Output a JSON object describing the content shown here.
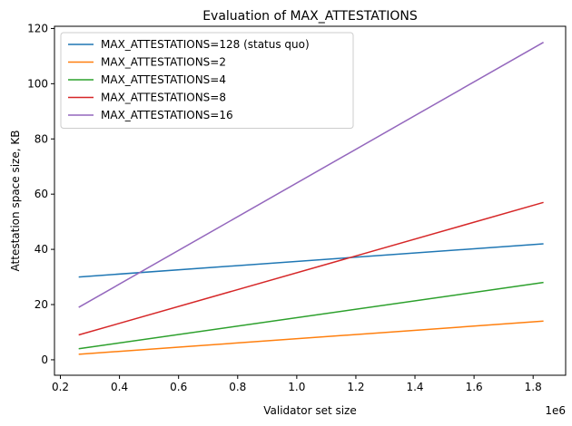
{
  "chart_data": {
    "type": "line",
    "title": "Evaluation of MAX_ATTESTATIONS",
    "xlabel": "Validator set size",
    "ylabel": "Attestation space size, KB",
    "x_offset_label": "1e6",
    "x_ticks": [
      0.2,
      0.4,
      0.6,
      0.8,
      1.0,
      1.2,
      1.4,
      1.6,
      1.8
    ],
    "x_tick_labels": [
      "0.2",
      "0.4",
      "0.6",
      "0.8",
      "1.0",
      "1.2",
      "1.4",
      "1.6",
      "1.8"
    ],
    "y_ticks": [
      0,
      20,
      40,
      60,
      80,
      100,
      120
    ],
    "y_tick_labels": [
      "0",
      "20",
      "40",
      "60",
      "80",
      "100",
      "120"
    ],
    "xlim": [
      0.18,
      1.91
    ],
    "ylim": [
      -5.6,
      120.8
    ],
    "grid": false,
    "legend_position": "top-left",
    "series": [
      {
        "name": "MAX_ATTESTATIONS=128 (status quo)",
        "color": "#1f77b4",
        "x": [
          0.262,
          1.835
        ],
        "y": [
          30,
          42
        ]
      },
      {
        "name": "MAX_ATTESTATIONS=2",
        "color": "#ff7f0e",
        "x": [
          0.262,
          1.835
        ],
        "y": [
          2,
          14
        ]
      },
      {
        "name": "MAX_ATTESTATIONS=4",
        "color": "#2ca02c",
        "x": [
          0.262,
          1.835
        ],
        "y": [
          4,
          28
        ]
      },
      {
        "name": "MAX_ATTESTATIONS=8",
        "color": "#d62728",
        "x": [
          0.262,
          1.835
        ],
        "y": [
          9,
          57
        ]
      },
      {
        "name": "MAX_ATTESTATIONS=16",
        "color": "#9467bd",
        "x": [
          0.262,
          1.835
        ],
        "y": [
          19,
          115
        ]
      }
    ]
  }
}
